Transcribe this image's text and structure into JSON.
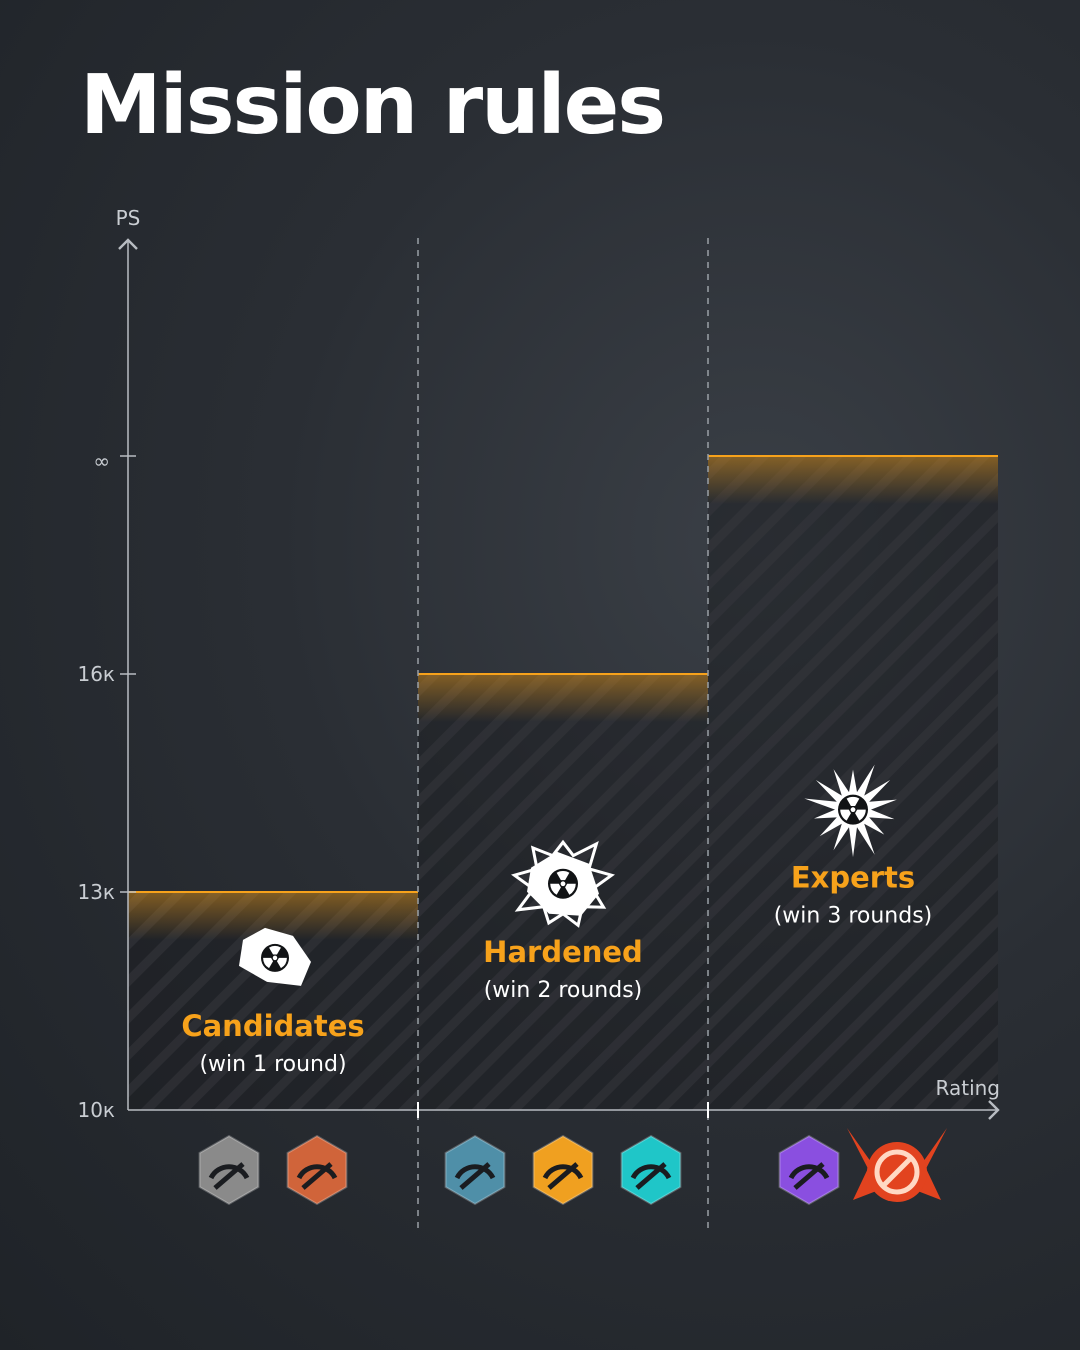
{
  "title": "Mission rules",
  "colors": {
    "accent": "#f7a21b",
    "axis": "#b8bcc2",
    "text": "#ffffff",
    "divider": "#9aa0a6"
  },
  "chart_data": {
    "type": "bar",
    "ylabel": "PS",
    "xlabel": "Rating",
    "y_ticks": [
      "10к",
      "13к",
      "16к",
      "∞"
    ],
    "categories": [
      "Candidates",
      "Hardened",
      "Experts"
    ],
    "values": [
      "13к",
      "16к",
      "∞"
    ],
    "subtitles": [
      "(win 1 round)",
      "(win 2 rounds)",
      "(win 3 rounds)"
    ],
    "tier_icons": [
      "rock-radiation-icon",
      "cracking-rock-radiation-icon",
      "explosion-radiation-icon"
    ],
    "rank_badges": [
      [
        "rank-badge-gray-icon",
        "rank-badge-bronze-icon"
      ],
      [
        "rank-badge-steel-blue-icon",
        "rank-badge-gold-icon",
        "rank-badge-cyan-icon"
      ],
      [
        "rank-badge-purple-icon",
        "rank-badge-red-winged-icon"
      ]
    ],
    "badge_colors": [
      [
        "#8a8a8a",
        "#d0643a"
      ],
      [
        "#4f8fa8",
        "#f0a020",
        "#1fc6c8"
      ],
      [
        "#8a4fe0",
        "#e2431f"
      ]
    ],
    "grid": false
  }
}
